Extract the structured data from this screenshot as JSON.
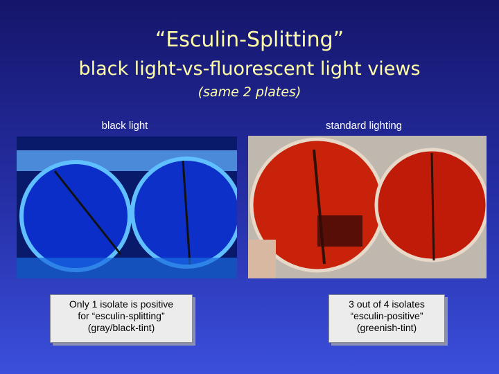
{
  "header": {
    "title": "“Esculin-Splitting”",
    "subtitle": "black light-vs-fluorescent light views",
    "note": "(same 2 plates)"
  },
  "panels": [
    {
      "label": "black light",
      "caption": [
        "Only 1 isolate is positive",
        "for “esculin-splitting”",
        "(gray/black-tint)"
      ]
    },
    {
      "label": "standard lighting",
      "caption": [
        "3 out of 4 isolates",
        "“esculin-positive”",
        "(greenish-tint)"
      ]
    }
  ]
}
